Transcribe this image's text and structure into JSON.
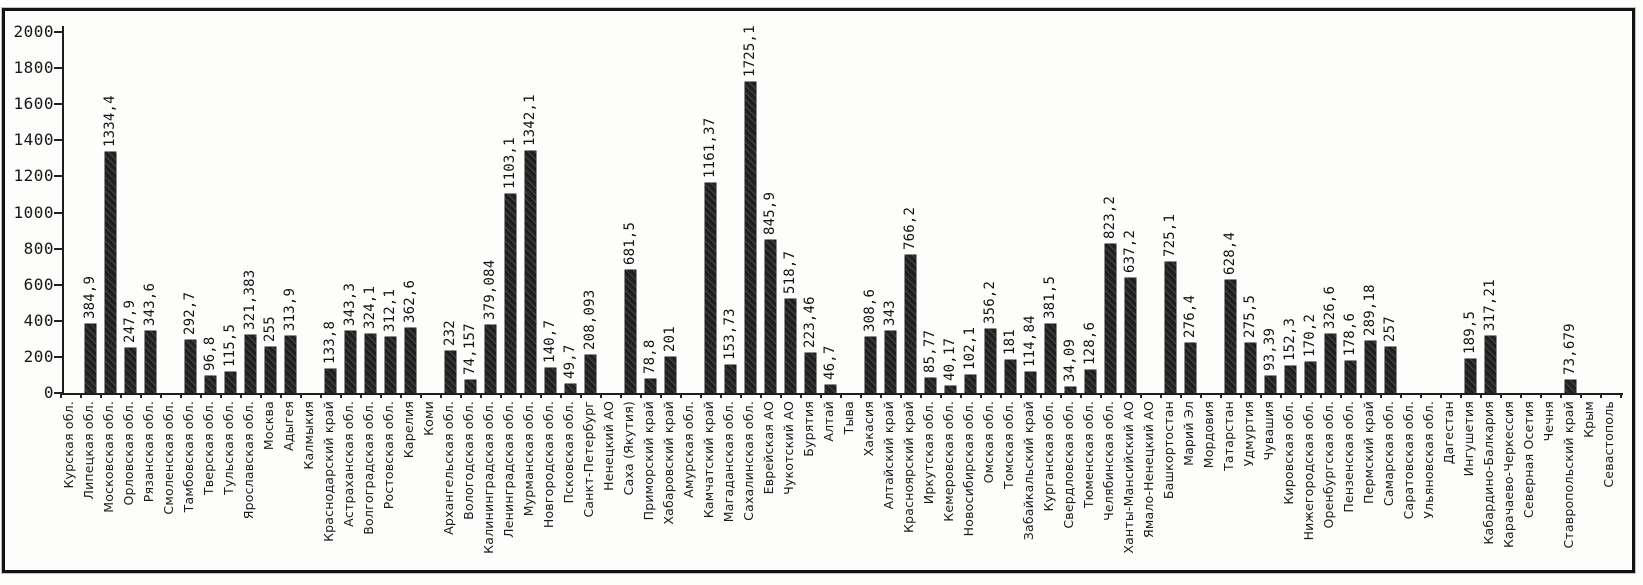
{
  "chart_data": {
    "type": "bar",
    "title": "",
    "xlabel": "",
    "ylabel": "",
    "ylim": [
      0,
      2000
    ],
    "ytick_interval": 200,
    "ytick_labels": [
      "2000",
      "1800",
      "1600",
      "1400",
      "1200",
      "1000",
      "800",
      "600",
      "400",
      "200",
      "0"
    ],
    "grid": false,
    "legend": null,
    "bar_color": "#2a2a2a",
    "frame_color": "#121212",
    "background": "#fdfdfb",
    "categories": [
      "Курская обл.",
      "Липецкая обл.",
      "Московская обл.",
      "Орловская обл.",
      "Рязанская обл.",
      "Смоленская обл.",
      "Тамбовская обл.",
      "Тверская обл.",
      "Тульская обл.",
      "Ярославская обл.",
      "Москва",
      "Адыгея",
      "Калмыкия",
      "Краснодарский край",
      "Астраханская обл.",
      "Волгоградская обл.",
      "Ростовская обл.",
      "Карелия",
      "Коми",
      "Архангельская обл.",
      "Вологодская обл.",
      "Калининградская обл.",
      "Ленинградская обл.",
      "Мурманская обл.",
      "Новгородская обл.",
      "Псковская обл.",
      "Санкт-Петербург",
      "Ненецкий АО",
      "Саха (Якутия)",
      "Приморский край",
      "Хабаровский край",
      "Амурская обл.",
      "Камчатский край",
      "Магаданская обл.",
      "Сахалинская обл.",
      "Еврейская АО",
      "Чукотский АО",
      "Бурятия",
      "Алтай",
      "Тыва",
      "Хакасия",
      "Алтайский край",
      "Красноярский край",
      "Иркутская обл.",
      "Кемеровская обл.",
      "Новосибирская обл.",
      "Омская обл.",
      "Томская обл.",
      "Забайкальский край",
      "Курганская обл.",
      "Свердловская обл.",
      "Тюменская обл.",
      "Челябинская обл.",
      "Ханты-Мансийский АО",
      "Ямало-Ненецкий АО",
      "Башкортостан",
      "Марий Эл",
      "Мордовия",
      "Татарстан",
      "Удмуртия",
      "Чувашия",
      "Кировская обл.",
      "Нижегородская обл.",
      "Оренбургская обл.",
      "Пензенская обл.",
      "Пермский край",
      "Самарская обл.",
      "Саратовская обл.",
      "Ульяновская обл.",
      "Дагестан",
      "Ингушетия",
      "Кабардино-Балкария",
      "Карачаево-Черкессия",
      "Северная Осетия",
      "Чечня",
      "Ставропольский край",
      "Крым",
      "Севастополь"
    ],
    "value_labels": [
      "",
      "384,9",
      "1334,4",
      "247,9",
      "343,6",
      "",
      "292,7",
      "96,8",
      "115,5",
      "321,383",
      "255",
      "313,9",
      "",
      "133,8",
      "343,3",
      "324,1",
      "312,1",
      "362,6",
      "",
      "232",
      "74,157",
      "379,084",
      "1103,1",
      "1342,1",
      "140,7",
      "49,7",
      "208,093",
      "",
      "681,5",
      "78,8",
      "201",
      "",
      "1161,37",
      "153,73",
      "1725,1",
      "845,9",
      "518,7",
      "223,46",
      "46,7",
      "",
      "308,6",
      "343",
      "766,2",
      "85,77",
      "40,17",
      "102,1",
      "356,2",
      "181",
      "114,84",
      "381,5",
      "34,09",
      "128,6",
      "823,2",
      "637,2",
      "",
      "725,1",
      "276,4",
      "",
      "628,4",
      "275,5",
      "93,39",
      "152,3",
      "170,2",
      "326,6",
      "178,6",
      "289,18",
      "257",
      "",
      "",
      "",
      "189,5",
      "317,21",
      "",
      "",
      "",
      "73,679",
      "",
      ""
    ],
    "values": [
      null,
      384.9,
      1334.4,
      247.9,
      343.6,
      null,
      292.7,
      96.8,
      115.5,
      321.383,
      255,
      313.9,
      null,
      133.8,
      343.3,
      324.1,
      312.1,
      362.6,
      null,
      232,
      74.157,
      379.084,
      1103.1,
      1342.1,
      140.7,
      49.7,
      208.093,
      null,
      681.5,
      78.8,
      201,
      null,
      1161.37,
      153.73,
      1725.1,
      845.9,
      518.7,
      223.46,
      46.7,
      null,
      308.6,
      343,
      766.2,
      85.77,
      40.17,
      102.1,
      356.2,
      181,
      114.84,
      381.5,
      34.09,
      128.6,
      823.2,
      637.2,
      null,
      725.1,
      276.4,
      null,
      628.4,
      275.5,
      93.39,
      152.3,
      170.2,
      326.6,
      178.6,
      289.18,
      257,
      null,
      null,
      null,
      189.5,
      317.21,
      null,
      null,
      null,
      73.679,
      null,
      null
    ]
  }
}
